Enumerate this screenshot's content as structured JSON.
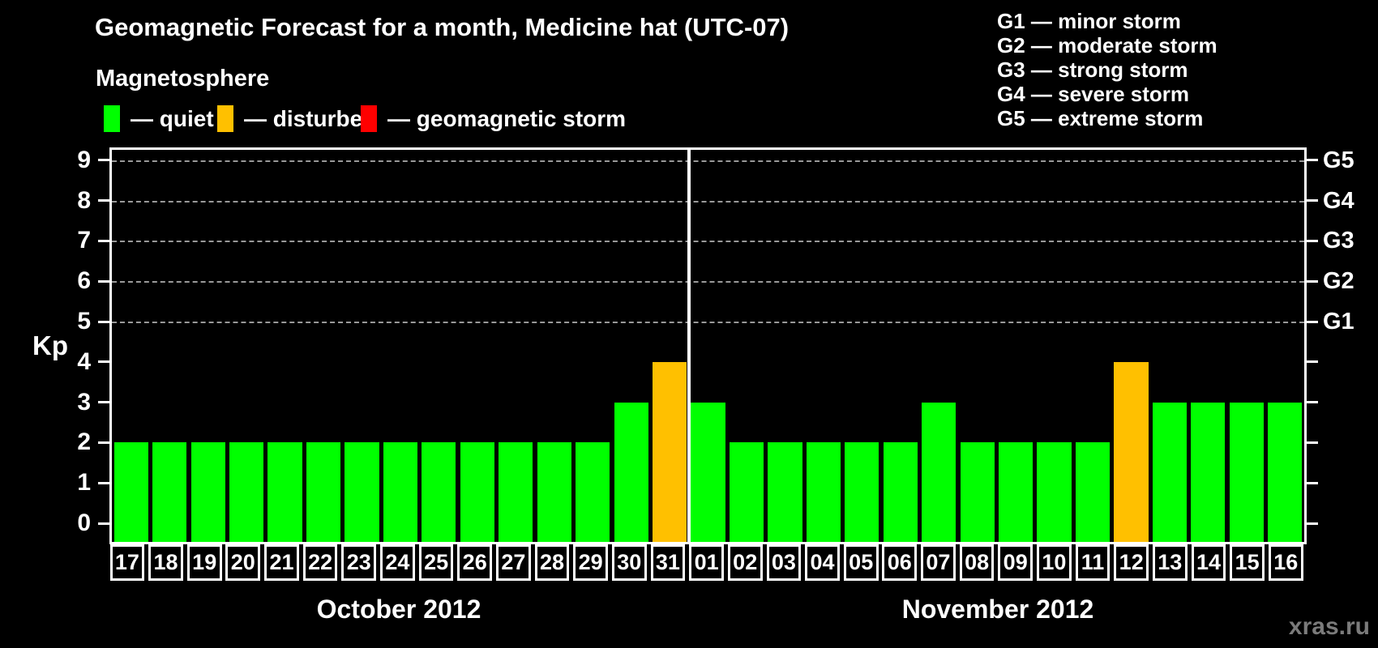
{
  "legend": {
    "heading": "Magnetosphere",
    "items": [
      {
        "key": "quiet",
        "label": "— quiet",
        "color": "#00ff00"
      },
      {
        "key": "disturbed",
        "label": "— disturbed",
        "color": "#ffc000"
      },
      {
        "key": "storm",
        "label": "— geomagnetic storm",
        "color": "#ff0000"
      }
    ]
  },
  "g_scale_legend": [
    "G1 — minor storm",
    "G2 — moderate storm",
    "G3 — strong storm",
    "G4 — severe storm",
    "G5 — extreme storm"
  ],
  "watermark": "xras.ru",
  "chart_data": {
    "type": "bar",
    "title": "Geomagnetic Forecast for a month, Medicine hat (UTC-07)",
    "ylabel": "Kp",
    "ylim": [
      0,
      9
    ],
    "yticks": [
      0,
      1,
      2,
      3,
      4,
      5,
      6,
      7,
      8,
      9
    ],
    "gridlines_at_kp": [
      5,
      6,
      7,
      8,
      9
    ],
    "grid": "dashed horizontal lines at G-storm levels",
    "legend_position": "top-left",
    "right_axis": [
      {
        "kp": 5,
        "label": "G1"
      },
      {
        "kp": 6,
        "label": "G2"
      },
      {
        "kp": 7,
        "label": "G3"
      },
      {
        "kp": 8,
        "label": "G4"
      },
      {
        "kp": 9,
        "label": "G5"
      }
    ],
    "state_colors": {
      "quiet": "#00ff00",
      "disturbed": "#ffc000",
      "storm": "#ff0000"
    },
    "months": [
      {
        "label": "October 2012",
        "start_index": 0,
        "num_days": 15
      },
      {
        "label": "November 2012",
        "start_index": 15,
        "num_days": 16
      }
    ],
    "days": [
      {
        "day": "17",
        "kp": 2,
        "state": "quiet"
      },
      {
        "day": "18",
        "kp": 2,
        "state": "quiet"
      },
      {
        "day": "19",
        "kp": 2,
        "state": "quiet"
      },
      {
        "day": "20",
        "kp": 2,
        "state": "quiet"
      },
      {
        "day": "21",
        "kp": 2,
        "state": "quiet"
      },
      {
        "day": "22",
        "kp": 2,
        "state": "quiet"
      },
      {
        "day": "23",
        "kp": 2,
        "state": "quiet"
      },
      {
        "day": "24",
        "kp": 2,
        "state": "quiet"
      },
      {
        "day": "25",
        "kp": 2,
        "state": "quiet"
      },
      {
        "day": "26",
        "kp": 2,
        "state": "quiet"
      },
      {
        "day": "27",
        "kp": 2,
        "state": "quiet"
      },
      {
        "day": "28",
        "kp": 2,
        "state": "quiet"
      },
      {
        "day": "29",
        "kp": 2,
        "state": "quiet"
      },
      {
        "day": "30",
        "kp": 3,
        "state": "quiet"
      },
      {
        "day": "31",
        "kp": 4,
        "state": "disturbed"
      },
      {
        "day": "01",
        "kp": 3,
        "state": "quiet"
      },
      {
        "day": "02",
        "kp": 2,
        "state": "quiet"
      },
      {
        "day": "03",
        "kp": 2,
        "state": "quiet"
      },
      {
        "day": "04",
        "kp": 2,
        "state": "quiet"
      },
      {
        "day": "05",
        "kp": 2,
        "state": "quiet"
      },
      {
        "day": "06",
        "kp": 2,
        "state": "quiet"
      },
      {
        "day": "07",
        "kp": 3,
        "state": "quiet"
      },
      {
        "day": "08",
        "kp": 2,
        "state": "quiet"
      },
      {
        "day": "09",
        "kp": 2,
        "state": "quiet"
      },
      {
        "day": "10",
        "kp": 2,
        "state": "quiet"
      },
      {
        "day": "11",
        "kp": 2,
        "state": "quiet"
      },
      {
        "day": "12",
        "kp": 4,
        "state": "disturbed"
      },
      {
        "day": "13",
        "kp": 3,
        "state": "quiet"
      },
      {
        "day": "14",
        "kp": 3,
        "state": "quiet"
      },
      {
        "day": "15",
        "kp": 3,
        "state": "quiet"
      },
      {
        "day": "16",
        "kp": 3,
        "state": "quiet"
      }
    ]
  }
}
